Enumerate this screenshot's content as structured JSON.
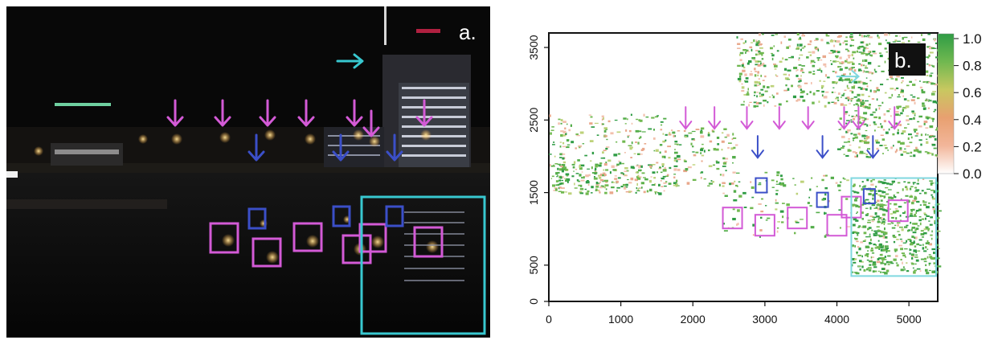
{
  "panel_a": {
    "label": "a.",
    "colors": {
      "magenta": "#d35ad6",
      "blue": "#3b4fc8",
      "cyan": "#38c8d0",
      "sky": "#0b0b0b"
    }
  },
  "panel_b": {
    "label": "b.",
    "chart_data": {
      "type": "heatmap",
      "x_ticks": [
        "0",
        "1000",
        "2000",
        "3000",
        "4000",
        "5000"
      ],
      "y_ticks": [
        "0",
        "500",
        "1500",
        "2500",
        "3500"
      ],
      "xlim": [
        0,
        5400
      ],
      "ylim": [
        0,
        3700
      ],
      "colorbar": {
        "ticks": [
          "0.0",
          "0.2",
          "0.4",
          "0.6",
          "0.8",
          "1.0"
        ],
        "range": [
          0,
          1
        ],
        "colors": [
          "#ffffff",
          "#f2b69a",
          "#e8a070",
          "#c8c860",
          "#70b850",
          "#2f9c45"
        ]
      },
      "magenta_arrows_x": [
        1900,
        2300,
        2750,
        3200,
        3600,
        4100,
        4300,
        4800
      ],
      "blue_arrows_x": [
        2900,
        3800,
        4500
      ],
      "magenta_boxes": [
        [
          2550,
          1150
        ],
        [
          3000,
          1050
        ],
        [
          3450,
          1150
        ],
        [
          4000,
          1050
        ],
        [
          4200,
          1300
        ],
        [
          4850,
          1250
        ]
      ],
      "blue_boxes": [
        [
          2950,
          1600
        ],
        [
          3800,
          1400
        ],
        [
          4450,
          1450
        ]
      ],
      "cyan_box": {
        "x": [
          4200,
          5400
        ],
        "y": [
          350,
          1700
        ]
      }
    }
  }
}
